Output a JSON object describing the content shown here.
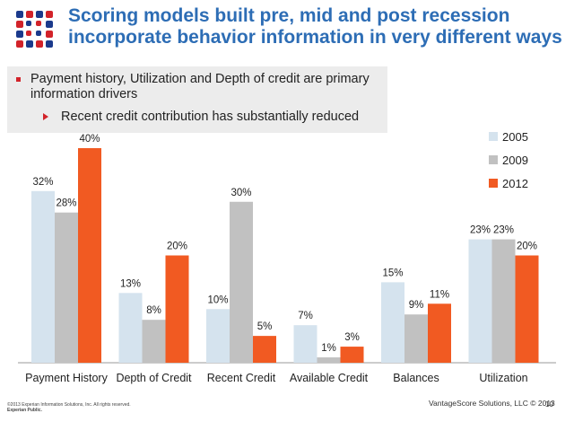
{
  "slide": {
    "title_line1": "Scoring models built pre, mid and post recession",
    "title_line2": "incorporate behavior information in very different ways",
    "bullet1": "Payment history, Utilization and Depth of credit are primary information drivers",
    "bullet2": "Recent credit contribution has substantially reduced",
    "footer_copyright": "©2013 Experian Information Solutions, Inc. All rights reserved.",
    "footer_classification": "Experian Public.",
    "footer_right": "VantageScore Solutions, LLC © 2013",
    "page_number": "10",
    "colors": {
      "title": "#2d6db5",
      "bullet": "#d2232a"
    }
  },
  "chart_data": {
    "type": "bar",
    "categories": [
      "Payment History",
      "Depth of Credit",
      "Recent Credit",
      "Available Credit",
      "Balances",
      "Utilization"
    ],
    "series": [
      {
        "name": "2005",
        "color": "#d5e3ee",
        "values": [
          32,
          13,
          10,
          7,
          15,
          23
        ]
      },
      {
        "name": "2009",
        "color": "#c1c1c1",
        "values": [
          28,
          8,
          30,
          1,
          9,
          23
        ]
      },
      {
        "name": "2012",
        "color": "#f15a22",
        "values": [
          40,
          20,
          5,
          3,
          11,
          20
        ]
      }
    ],
    "value_suffix": "%",
    "ylim": [
      0,
      40
    ],
    "legend": "top-right",
    "grid": false
  }
}
